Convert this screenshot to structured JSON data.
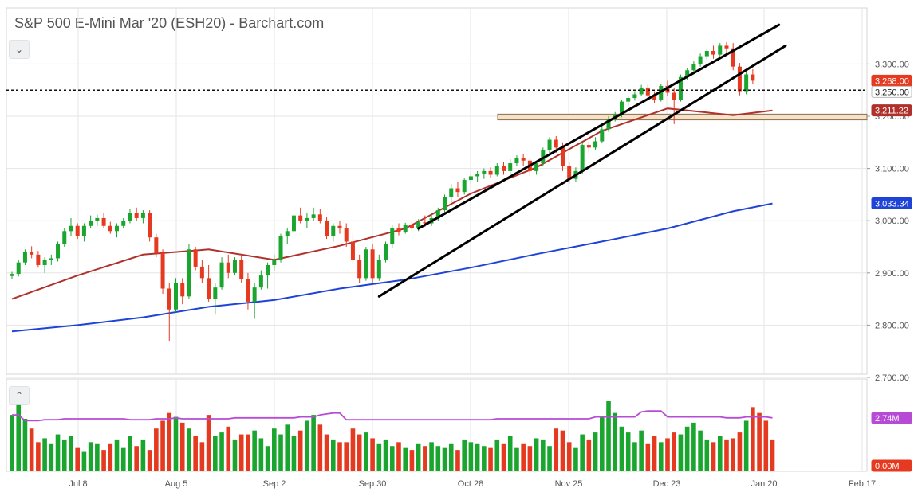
{
  "title": "S&P 500 E-Mini Mar '20 (ESH20) - Barchart.com",
  "controls": {
    "price_panel_toggle_icon": "chevron-down-icon",
    "price_panel_toggle_glyph": "⌄",
    "volume_panel_toggle_icon": "chevron-up-icon",
    "volume_panel_toggle_glyph": "⌃"
  },
  "colors": {
    "up": "#1aa52f",
    "down": "#e53a1f",
    "ma_short": "#b0312c",
    "ma_long": "#1f43d6",
    "volume_avg": "#b64bd6",
    "grid": "#e6e6e6",
    "trendline": "#000000",
    "zone_fill": "#f6e2c8",
    "zone_border": "#8a6d4a"
  },
  "chart_data": [
    {
      "type": "candlestick",
      "panel": "price",
      "title": "S&P 500 E-Mini Mar '20 (ESH20) - Barchart.com",
      "x_ticks": [
        "Jul 8",
        "Aug 5",
        "Sep 2",
        "Sep 30",
        "Oct 28",
        "Nov 25",
        "Dec 23",
        "Jan 20",
        "Feb 17"
      ],
      "y_ticks": [
        "3,300.00",
        "3,200.00",
        "3,100.00",
        "3,000.00",
        "2,900.00",
        "2,800.00",
        "2,700.00"
      ],
      "ylim": [
        2700,
        3350
      ],
      "grid": true,
      "price_labels": [
        {
          "text": "3,268.00",
          "value": 3268,
          "style": "down"
        },
        {
          "text": "3,250.00",
          "value": 3250,
          "style": "plain"
        },
        {
          "text": "3,211.22",
          "value": 3211.22,
          "style": "ma_short"
        },
        {
          "text": "3,033.34",
          "value": 3033.34,
          "style": "ma_long"
        }
      ],
      "reference_line": 3250,
      "zone": [
        3193,
        3204
      ],
      "candles": [
        [
          2894,
          2902,
          2888,
          2898
        ],
        [
          2898,
          2925,
          2893,
          2920
        ],
        [
          2920,
          2945,
          2915,
          2940
        ],
        [
          2940,
          2951,
          2928,
          2935
        ],
        [
          2935,
          2942,
          2910,
          2915
        ],
        [
          2915,
          2930,
          2900,
          2925
        ],
        [
          2925,
          2935,
          2915,
          2928
        ],
        [
          2928,
          2960,
          2922,
          2955
        ],
        [
          2955,
          2985,
          2950,
          2980
        ],
        [
          2980,
          3005,
          2970,
          2990
        ],
        [
          2990,
          2995,
          2965,
          2970
        ],
        [
          2970,
          2995,
          2960,
          2990
        ],
        [
          2990,
          3010,
          2985,
          3000
        ],
        [
          3000,
          3012,
          2990,
          3005
        ],
        [
          3005,
          3015,
          2985,
          2990
        ],
        [
          2990,
          2998,
          2975,
          2980
        ],
        [
          2980,
          2995,
          2968,
          2990
        ],
        [
          2990,
          3005,
          2985,
          3000
        ],
        [
          3000,
          3022,
          2995,
          3015
        ],
        [
          3015,
          3025,
          3000,
          3005
        ],
        [
          3005,
          3020,
          2995,
          3015
        ],
        [
          3015,
          3020,
          2960,
          2968
        ],
        [
          2968,
          2975,
          2930,
          2938
        ],
        [
          2938,
          2945,
          2860,
          2870
        ],
        [
          2870,
          2880,
          2770,
          2830
        ],
        [
          2830,
          2890,
          2825,
          2880
        ],
        [
          2880,
          2890,
          2840,
          2855
        ],
        [
          2855,
          2955,
          2850,
          2945
        ],
        [
          2945,
          2950,
          2905,
          2912
        ],
        [
          2912,
          2925,
          2880,
          2890
        ],
        [
          2890,
          2915,
          2845,
          2850
        ],
        [
          2850,
          2880,
          2820,
          2872
        ],
        [
          2872,
          2930,
          2868,
          2920
        ],
        [
          2920,
          2935,
          2890,
          2900
        ],
        [
          2900,
          2930,
          2895,
          2925
        ],
        [
          2925,
          2932,
          2880,
          2888
        ],
        [
          2888,
          2900,
          2830,
          2845
        ],
        [
          2845,
          2880,
          2812,
          2872
        ],
        [
          2872,
          2905,
          2868,
          2895
        ],
        [
          2895,
          2920,
          2870,
          2915
        ],
        [
          2915,
          2935,
          2905,
          2925
        ],
        [
          2925,
          2975,
          2920,
          2970
        ],
        [
          2970,
          2985,
          2955,
          2980
        ],
        [
          2980,
          3015,
          2975,
          3010
        ],
        [
          3010,
          3025,
          2995,
          3000
        ],
        [
          3000,
          3015,
          2985,
          3005
        ],
        [
          3005,
          3025,
          3000,
          3012
        ],
        [
          3012,
          3022,
          2995,
          3000
        ],
        [
          3000,
          3008,
          2965,
          2970
        ],
        [
          2970,
          2995,
          2960,
          2990
        ],
        [
          2990,
          3000,
          2975,
          2985
        ],
        [
          2985,
          2995,
          2950,
          2960
        ],
        [
          2960,
          2975,
          2915,
          2925
        ],
        [
          2925,
          2935,
          2880,
          2890
        ],
        [
          2890,
          2950,
          2885,
          2945
        ],
        [
          2945,
          2955,
          2880,
          2890
        ],
        [
          2890,
          2935,
          2885,
          2925
        ],
        [
          2925,
          2960,
          2920,
          2955
        ],
        [
          2955,
          2992,
          2948,
          2985
        ],
        [
          2985,
          2995,
          2972,
          2978
        ],
        [
          2978,
          2996,
          2975,
          2992
        ],
        [
          2992,
          3000,
          2980,
          2985
        ],
        [
          2985,
          3003,
          2980,
          2997
        ],
        [
          2997,
          3010,
          2988,
          2995
        ],
        [
          2995,
          3012,
          2990,
          3005
        ],
        [
          3005,
          3025,
          3000,
          3020
        ],
        [
          3020,
          3050,
          3015,
          3045
        ],
        [
          3045,
          3070,
          3035,
          3062
        ],
        [
          3062,
          3075,
          3045,
          3055
        ],
        [
          3055,
          3082,
          3050,
          3078
        ],
        [
          3078,
          3090,
          3070,
          3085
        ],
        [
          3085,
          3095,
          3075,
          3090
        ],
        [
          3090,
          3100,
          3080,
          3095
        ],
        [
          3095,
          3102,
          3082,
          3088
        ],
        [
          3088,
          3110,
          3085,
          3105
        ],
        [
          3105,
          3112,
          3088,
          3095
        ],
        [
          3095,
          3118,
          3090,
          3110
        ],
        [
          3110,
          3125,
          3105,
          3120
        ],
        [
          3120,
          3128,
          3105,
          3115
        ],
        [
          3115,
          3120,
          3085,
          3095
        ],
        [
          3095,
          3115,
          3088,
          3110
        ],
        [
          3110,
          3140,
          3105,
          3135
        ],
        [
          3135,
          3160,
          3128,
          3155
        ],
        [
          3155,
          3162,
          3130,
          3140
        ],
        [
          3140,
          3150,
          3095,
          3105
        ],
        [
          3105,
          3112,
          3070,
          3080
        ],
        [
          3080,
          3102,
          3075,
          3095
        ],
        [
          3095,
          3150,
          3090,
          3145
        ],
        [
          3145,
          3152,
          3130,
          3140
        ],
        [
          3140,
          3160,
          3135,
          3152
        ],
        [
          3152,
          3182,
          3148,
          3175
        ],
        [
          3175,
          3200,
          3170,
          3195
        ],
        [
          3195,
          3208,
          3190,
          3202
        ],
        [
          3202,
          3232,
          3198,
          3228
        ],
        [
          3228,
          3240,
          3220,
          3235
        ],
        [
          3235,
          3248,
          3230,
          3242
        ],
        [
          3242,
          3260,
          3238,
          3255
        ],
        [
          3255,
          3262,
          3235,
          3240
        ],
        [
          3240,
          3248,
          3225,
          3232
        ],
        [
          3232,
          3262,
          3228,
          3258
        ],
        [
          3258,
          3268,
          3238,
          3245
        ],
        [
          3245,
          3255,
          3185,
          3232
        ],
        [
          3232,
          3280,
          3228,
          3275
        ],
        [
          3275,
          3292,
          3270,
          3288
        ],
        [
          3288,
          3305,
          3282,
          3300
        ],
        [
          3300,
          3320,
          3295,
          3315
        ],
        [
          3315,
          3330,
          3308,
          3325
        ],
        [
          3325,
          3335,
          3310,
          3318
        ],
        [
          3318,
          3340,
          3312,
          3335
        ],
        [
          3335,
          3342,
          3320,
          3330
        ],
        [
          3330,
          3340,
          3288,
          3295
        ],
        [
          3295,
          3302,
          3240,
          3248
        ],
        [
          3248,
          3285,
          3242,
          3280
        ],
        [
          3280,
          3290,
          3262,
          3268
        ]
      ],
      "series": [
        {
          "style": "ma_short",
          "x": [
            0,
            10,
            20,
            30,
            40,
            50,
            60,
            70,
            80,
            90,
            100,
            110,
            116
          ],
          "y": [
            2850,
            2895,
            2935,
            2945,
            2925,
            2952,
            2985,
            3052,
            3102,
            3172,
            3215,
            3202,
            3211
          ]
        },
        {
          "style": "ma_long",
          "x": [
            0,
            10,
            20,
            30,
            40,
            50,
            60,
            70,
            80,
            90,
            100,
            110,
            116
          ],
          "y": [
            2788,
            2800,
            2815,
            2835,
            2848,
            2870,
            2887,
            2910,
            2936,
            2960,
            2985,
            3018,
            3033
          ]
        }
      ],
      "trendlines": [
        {
          "points": [
            [
              62,
              2985
            ],
            [
              117,
              3375
            ]
          ]
        },
        {
          "points": [
            [
              56,
              2855
            ],
            [
              118,
              3335
            ]
          ]
        }
      ]
    },
    {
      "type": "bar",
      "panel": "volume",
      "y_labels": [
        {
          "text": "2.74M",
          "value": 2.74,
          "style": "volume_avg"
        },
        {
          "text": "0.00M",
          "value": 0,
          "style": "down"
        }
      ],
      "ylim": [
        0,
        4.5
      ],
      "avg_line": [
        2.9,
        2.9,
        2.6,
        2.6,
        2.6,
        2.65,
        2.65,
        2.65,
        2.7,
        2.7,
        2.7,
        2.7,
        2.7,
        2.7,
        2.7,
        2.7,
        2.7,
        2.7,
        2.65,
        2.65,
        2.65,
        2.65,
        2.7,
        2.7,
        2.7,
        2.75,
        2.7,
        2.7,
        2.7,
        2.7,
        2.7,
        2.7,
        2.7,
        2.7,
        2.75,
        2.75,
        2.75,
        2.75,
        2.75,
        2.75,
        2.75,
        2.75,
        2.75,
        2.75,
        2.8,
        2.8,
        2.8,
        2.9,
        2.95,
        3.0,
        3.0,
        2.65,
        2.65,
        2.65,
        2.65,
        2.65,
        2.65,
        2.65,
        2.65,
        2.65,
        2.65,
        2.65,
        2.65,
        2.65,
        2.65,
        2.65,
        2.65,
        2.65,
        2.65,
        2.65,
        2.65,
        2.65,
        2.65,
        2.65,
        2.7,
        2.7,
        2.7,
        2.7,
        2.7,
        2.7,
        2.7,
        2.7,
        2.7,
        2.7,
        2.7,
        2.7,
        2.7,
        2.7,
        2.7,
        2.8,
        2.8,
        2.8,
        2.8,
        2.8,
        2.8,
        2.8,
        3.05,
        3.1,
        3.1,
        3.1,
        2.8,
        2.8,
        2.8,
        2.8,
        2.8,
        2.8,
        2.8,
        2.8,
        2.8,
        2.75,
        2.75,
        2.75,
        2.8,
        2.8,
        2.8,
        2.8,
        2.75
      ],
      "values": [
        2.9,
        3.4,
        2.7,
        2.2,
        1.5,
        1.7,
        1.4,
        1.9,
        1.6,
        1.8,
        1.2,
        1.0,
        1.5,
        1.4,
        1.1,
        1.4,
        1.6,
        1.2,
        1.8,
        1.3,
        1.6,
        1.1,
        2.2,
        2.6,
        3.0,
        2.8,
        2.5,
        2.2,
        1.8,
        1.5,
        2.9,
        1.8,
        2.0,
        2.3,
        1.6,
        1.9,
        1.9,
        2.1,
        1.7,
        1.3,
        2.2,
        1.9,
        2.4,
        1.8,
        2.1,
        2.6,
        2.9,
        2.4,
        1.9,
        1.6,
        1.5,
        1.5,
        2.2,
        1.9,
        2.0,
        1.7,
        1.4,
        1.6,
        1.3,
        1.5,
        1.2,
        1.1,
        1.4,
        1.3,
        1.5,
        1.3,
        1.2,
        1.4,
        1.1,
        1.6,
        1.5,
        1.4,
        1.3,
        1.2,
        1.6,
        1.4,
        1.8,
        1.2,
        1.4,
        1.3,
        1.7,
        1.6,
        1.3,
        2.2,
        2.1,
        1.5,
        1.2,
        1.9,
        1.6,
        2.0,
        2.8,
        3.6,
        3.0,
        2.3,
        2.0,
        1.5,
        2.1,
        1.4,
        1.8,
        1.5,
        1.7,
        2.0,
        1.9,
        2.3,
        2.5,
        2.1,
        1.6,
        1.5,
        1.8,
        1.6,
        1.7,
        2.0,
        2.6,
        3.3,
        3.0,
        2.6,
        1.6
      ]
    }
  ]
}
